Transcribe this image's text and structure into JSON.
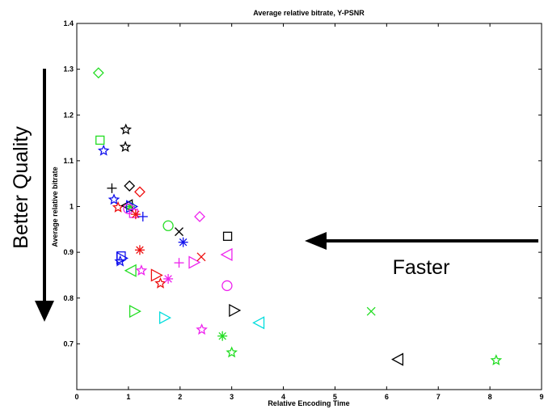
{
  "chart_data": {
    "type": "scatter",
    "title": "Average relative bitrate, Y-PSNR",
    "xlabel": "Relative Encoding Time",
    "ylabel": "Average relative bitrate",
    "xlim": [
      0,
      9
    ],
    "ylim": [
      0.6,
      1.4
    ],
    "xticks": [
      "0",
      "1",
      "2",
      "3",
      "4",
      "5",
      "6",
      "7",
      "8",
      "9"
    ],
    "yticks": [
      "0.7",
      "0.8",
      "0.9",
      "1",
      "1.1",
      "1.2",
      "1.3",
      "1.4"
    ],
    "grid": false,
    "annotations": {
      "quality": "Better Quality",
      "speed": "Faster"
    },
    "points": [
      {
        "x": 0.42,
        "y": 1.292,
        "color": "#22dd22",
        "marker": "diamond"
      },
      {
        "x": 0.45,
        "y": 1.145,
        "color": "#22dd22",
        "marker": "square"
      },
      {
        "x": 0.52,
        "y": 1.122,
        "color": "#1010ee",
        "marker": "star"
      },
      {
        "x": 0.95,
        "y": 1.168,
        "color": "#000000",
        "marker": "star"
      },
      {
        "x": 0.94,
        "y": 1.13,
        "color": "#000000",
        "marker": "star"
      },
      {
        "x": 0.68,
        "y": 1.04,
        "color": "#000000",
        "marker": "plus"
      },
      {
        "x": 1.02,
        "y": 1.045,
        "color": "#000000",
        "marker": "diamond"
      },
      {
        "x": 0.72,
        "y": 1.015,
        "color": "#1010ee",
        "marker": "star"
      },
      {
        "x": 0.8,
        "y": 0.998,
        "color": "#ee1010",
        "marker": "star"
      },
      {
        "x": 0.98,
        "y": 1.002,
        "color": "#000000",
        "marker": "tri-left"
      },
      {
        "x": 1.03,
        "y": 1.0,
        "color": "#22dd22",
        "marker": "asterisk"
      },
      {
        "x": 1.06,
        "y": 1.0,
        "color": "#1010ee",
        "marker": "tri-right"
      },
      {
        "x": 1.0,
        "y": 0.995,
        "color": "#ee22ee",
        "marker": "circle"
      },
      {
        "x": 1.1,
        "y": 0.985,
        "color": "#ee22ee",
        "marker": "square"
      },
      {
        "x": 1.14,
        "y": 0.983,
        "color": "#ee1010",
        "marker": "asterisk"
      },
      {
        "x": 1.22,
        "y": 1.032,
        "color": "#ee1010",
        "marker": "diamond"
      },
      {
        "x": 1.28,
        "y": 0.978,
        "color": "#1010ee",
        "marker": "plus"
      },
      {
        "x": 2.38,
        "y": 0.978,
        "color": "#ee22ee",
        "marker": "diamond"
      },
      {
        "x": 1.77,
        "y": 0.958,
        "color": "#22dd22",
        "marker": "circle"
      },
      {
        "x": 1.98,
        "y": 0.945,
        "color": "#000000",
        "marker": "cross"
      },
      {
        "x": 2.06,
        "y": 0.922,
        "color": "#1010ee",
        "marker": "asterisk"
      },
      {
        "x": 2.92,
        "y": 0.935,
        "color": "#000000",
        "marker": "square"
      },
      {
        "x": 0.86,
        "y": 0.892,
        "color": "#1010ee",
        "marker": "square"
      },
      {
        "x": 0.87,
        "y": 0.887,
        "color": "#1010ee",
        "marker": "tri-right"
      },
      {
        "x": 0.84,
        "y": 0.88,
        "color": "#1010ee",
        "marker": "star"
      },
      {
        "x": 1.22,
        "y": 0.905,
        "color": "#ee1010",
        "marker": "asterisk"
      },
      {
        "x": 1.05,
        "y": 0.86,
        "color": "#22dd22",
        "marker": "tri-left"
      },
      {
        "x": 1.25,
        "y": 0.86,
        "color": "#ee22ee",
        "marker": "star"
      },
      {
        "x": 1.54,
        "y": 0.85,
        "color": "#ee1010",
        "marker": "tri-right"
      },
      {
        "x": 1.62,
        "y": 0.832,
        "color": "#ee1010",
        "marker": "star"
      },
      {
        "x": 1.77,
        "y": 0.842,
        "color": "#ee22ee",
        "marker": "asterisk"
      },
      {
        "x": 1.98,
        "y": 0.877,
        "color": "#ee22ee",
        "marker": "plus"
      },
      {
        "x": 2.27,
        "y": 0.878,
        "color": "#ee22ee",
        "marker": "tri-right"
      },
      {
        "x": 2.41,
        "y": 0.89,
        "color": "#ee1010",
        "marker": "cross"
      },
      {
        "x": 2.91,
        "y": 0.895,
        "color": "#ee22ee",
        "marker": "tri-left"
      },
      {
        "x": 2.91,
        "y": 0.827,
        "color": "#ee22ee",
        "marker": "circle"
      },
      {
        "x": 1.12,
        "y": 0.771,
        "color": "#22dd22",
        "marker": "tri-right"
      },
      {
        "x": 1.7,
        "y": 0.757,
        "color": "#00dddd",
        "marker": "tri-right"
      },
      {
        "x": 3.05,
        "y": 0.773,
        "color": "#000000",
        "marker": "tri-right"
      },
      {
        "x": 3.53,
        "y": 0.746,
        "color": "#00dddd",
        "marker": "tri-left"
      },
      {
        "x": 2.42,
        "y": 0.731,
        "color": "#ee22ee",
        "marker": "star"
      },
      {
        "x": 2.82,
        "y": 0.717,
        "color": "#22dd22",
        "marker": "asterisk"
      },
      {
        "x": 3.0,
        "y": 0.681,
        "color": "#22dd22",
        "marker": "star"
      },
      {
        "x": 5.7,
        "y": 0.771,
        "color": "#22dd22",
        "marker": "cross"
      },
      {
        "x": 6.22,
        "y": 0.666,
        "color": "#000000",
        "marker": "tri-left"
      },
      {
        "x": 8.12,
        "y": 0.664,
        "color": "#22dd22",
        "marker": "star"
      }
    ]
  }
}
